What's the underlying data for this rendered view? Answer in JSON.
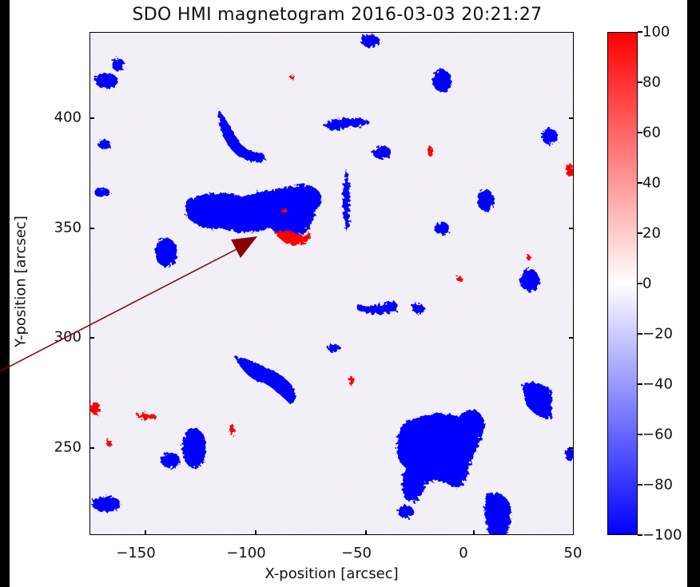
{
  "title": "SDO HMI magnetogram 2016-03-03 20:21:27",
  "xlabel": "X-position [arcsec]",
  "ylabel": "Y-position [arcsec]",
  "x_ticks": [
    "−150",
    "−100",
    "−50",
    "0",
    "50"
  ],
  "y_ticks": [
    "400",
    "350",
    "300",
    "250"
  ],
  "colorbar_ticks": [
    "100",
    "80",
    "60",
    "40",
    "20",
    "0",
    "−20",
    "−40",
    "−60",
    "−80",
    "−100"
  ],
  "colors": {
    "positive": "#ff0000",
    "negative": "#0000ff",
    "zero": "#ffffff",
    "arrow": "#8b0000",
    "background": "#000000"
  }
}
